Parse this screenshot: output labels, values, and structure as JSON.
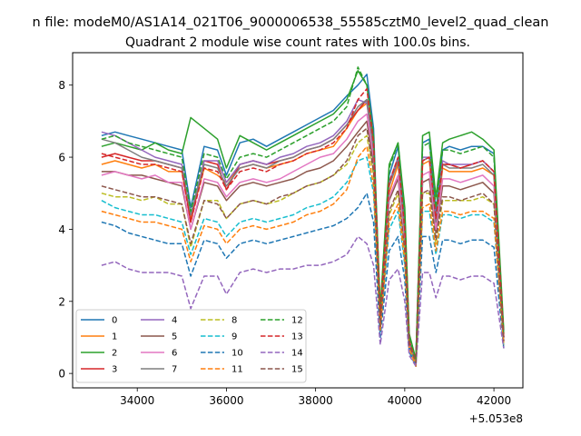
{
  "chart_data": {
    "type": "line",
    "suptitle": "n file: modeM0/AS1A14_021T06_9000006538_55585cztM0_level2_quad_clean",
    "title": "Quadrant 2 module wise count rates with 100.0s bins.",
    "xlabel": "",
    "ylabel": "",
    "offset_text": "+5.053e8",
    "xlim": [
      32550,
      42650
    ],
    "ylim": [
      -0.4,
      8.9
    ],
    "xticks": [
      34000,
      36000,
      38000,
      40000,
      42000
    ],
    "xtick_labels": [
      "34000",
      "36000",
      "38000",
      "40000",
      "42000"
    ],
    "yticks": [
      0,
      2,
      4,
      6,
      8
    ],
    "ytick_labels": [
      "0",
      "2",
      "4",
      "6",
      "8"
    ],
    "grid": false,
    "legend_placement": "lower-left",
    "x": [
      33200,
      33500,
      33800,
      34100,
      34400,
      34700,
      35000,
      35200,
      35500,
      35800,
      36000,
      36300,
      36600,
      36900,
      37200,
      37500,
      37800,
      38100,
      38400,
      38700,
      38950,
      39150,
      39300,
      39450,
      39650,
      39850,
      40000,
      40100,
      40250,
      40400,
      40550,
      40700,
      40850,
      41000,
      41250,
      41500,
      41750,
      42000,
      42220
    ],
    "series": [
      {
        "name": "0",
        "color": "#1f77b4",
        "dashed": false,
        "values": [
          6.6,
          6.7,
          6.6,
          6.5,
          6.4,
          6.3,
          6.2,
          4.6,
          6.3,
          6.2,
          5.5,
          6.4,
          6.5,
          6.3,
          6.5,
          6.7,
          6.9,
          7.1,
          7.3,
          7.7,
          8.0,
          8.3,
          6.8,
          1.6,
          5.5,
          6.3,
          4.2,
          0.9,
          0.4,
          6.4,
          6.5,
          4.5,
          6.2,
          6.3,
          6.2,
          6.3,
          6.3,
          6.1,
          1.0
        ]
      },
      {
        "name": "1",
        "color": "#ff7f0e",
        "dashed": false,
        "values": [
          5.8,
          5.9,
          5.8,
          5.7,
          5.8,
          5.6,
          5.6,
          4.3,
          5.7,
          5.5,
          5.3,
          5.7,
          5.8,
          5.7,
          5.8,
          5.9,
          6.1,
          6.2,
          6.3,
          6.8,
          7.3,
          7.5,
          6.2,
          1.3,
          5.0,
          5.8,
          3.8,
          0.8,
          0.3,
          5.8,
          5.9,
          4.1,
          5.7,
          5.6,
          5.6,
          5.6,
          5.7,
          5.5,
          0.9
        ]
      },
      {
        "name": "2",
        "color": "#2ca02c",
        "dashed": false,
        "values": [
          6.3,
          6.4,
          6.3,
          6.2,
          6.4,
          6.2,
          6.1,
          7.1,
          6.8,
          6.5,
          5.7,
          6.6,
          6.4,
          6.2,
          6.4,
          6.6,
          6.8,
          7.0,
          7.2,
          7.6,
          8.4,
          8.0,
          6.5,
          1.8,
          5.8,
          6.4,
          4.6,
          1.1,
          0.4,
          6.6,
          6.7,
          4.9,
          6.4,
          6.5,
          6.6,
          6.7,
          6.5,
          6.2,
          1.2
        ]
      },
      {
        "name": "3",
        "color": "#d62728",
        "dashed": false,
        "values": [
          6.0,
          6.1,
          6.0,
          5.9,
          5.9,
          5.8,
          5.7,
          4.2,
          5.9,
          5.8,
          5.1,
          5.8,
          5.9,
          5.8,
          5.9,
          6.0,
          6.2,
          6.3,
          6.5,
          6.9,
          7.3,
          7.6,
          6.3,
          1.5,
          5.2,
          5.9,
          4.0,
          0.9,
          0.3,
          5.9,
          6.0,
          4.3,
          5.8,
          5.8,
          5.7,
          5.8,
          5.9,
          5.6,
          1.0
        ]
      },
      {
        "name": "4",
        "color": "#9467bd",
        "dashed": false,
        "values": [
          6.7,
          6.6,
          6.4,
          6.2,
          6.0,
          5.9,
          5.8,
          4.4,
          5.9,
          5.9,
          5.3,
          5.8,
          5.9,
          5.8,
          6.0,
          6.1,
          6.3,
          6.4,
          6.6,
          7.0,
          7.6,
          7.5,
          6.2,
          1.5,
          5.3,
          6.0,
          4.0,
          0.9,
          0.3,
          6.0,
          6.0,
          4.3,
          5.9,
          5.8,
          5.8,
          5.8,
          5.9,
          5.6,
          1.0
        ]
      },
      {
        "name": "5",
        "color": "#8c564b",
        "dashed": false,
        "values": [
          5.6,
          5.6,
          5.5,
          5.5,
          5.4,
          5.3,
          5.2,
          4.0,
          5.3,
          5.2,
          4.8,
          5.2,
          5.3,
          5.2,
          5.3,
          5.4,
          5.6,
          5.7,
          5.9,
          6.3,
          6.7,
          7.0,
          5.8,
          1.4,
          4.8,
          5.4,
          3.6,
          0.8,
          0.3,
          5.3,
          5.4,
          3.9,
          5.2,
          5.2,
          5.1,
          5.2,
          5.3,
          5.0,
          0.9
        ]
      },
      {
        "name": "6",
        "color": "#e377c2",
        "dashed": false,
        "values": [
          5.5,
          5.6,
          5.5,
          5.4,
          5.5,
          5.3,
          5.3,
          4.0,
          5.4,
          5.3,
          4.9,
          5.3,
          5.4,
          5.3,
          5.4,
          5.6,
          5.8,
          6.0,
          6.1,
          6.5,
          7.0,
          7.2,
          6.0,
          1.4,
          4.9,
          5.5,
          3.7,
          0.8,
          0.3,
          5.5,
          5.6,
          4.0,
          5.4,
          5.4,
          5.3,
          5.4,
          5.5,
          5.2,
          0.9
        ]
      },
      {
        "name": "7",
        "color": "#7f7f7f",
        "dashed": false,
        "values": [
          6.5,
          6.4,
          6.2,
          6.0,
          5.9,
          5.8,
          5.7,
          4.4,
          5.8,
          5.7,
          5.2,
          5.7,
          5.8,
          5.7,
          5.9,
          6.0,
          6.2,
          6.3,
          6.5,
          6.9,
          7.4,
          7.6,
          6.2,
          1.5,
          5.2,
          5.9,
          3.9,
          0.9,
          0.3,
          5.9,
          6.0,
          4.2,
          5.8,
          5.7,
          5.7,
          5.7,
          5.8,
          5.5,
          1.0
        ]
      },
      {
        "name": "8",
        "color": "#bcbd22",
        "dashed": true,
        "values": [
          5.0,
          4.9,
          4.9,
          4.8,
          4.9,
          4.7,
          4.7,
          3.5,
          4.8,
          4.8,
          4.3,
          4.7,
          4.8,
          4.7,
          4.8,
          5.0,
          5.2,
          5.3,
          5.5,
          5.8,
          6.4,
          6.6,
          5.5,
          1.3,
          4.4,
          5.0,
          3.3,
          0.7,
          0.3,
          5.0,
          5.0,
          3.6,
          4.8,
          4.8,
          4.8,
          4.8,
          4.9,
          4.7,
          0.8
        ]
      },
      {
        "name": "9",
        "color": "#17becf",
        "dashed": true,
        "values": [
          4.8,
          4.6,
          4.5,
          4.4,
          4.4,
          4.3,
          4.2,
          3.3,
          4.3,
          4.2,
          3.8,
          4.2,
          4.3,
          4.2,
          4.3,
          4.4,
          4.6,
          4.7,
          4.9,
          5.3,
          5.9,
          6.0,
          5.0,
          1.2,
          4.0,
          4.5,
          3.0,
          0.7,
          0.2,
          4.5,
          4.5,
          3.3,
          4.4,
          4.4,
          4.3,
          4.4,
          4.4,
          4.2,
          0.8
        ]
      },
      {
        "name": "10",
        "color": "#1f77b4",
        "dashed": true,
        "values": [
          4.2,
          4.1,
          3.9,
          3.8,
          3.7,
          3.6,
          3.6,
          2.7,
          3.7,
          3.6,
          3.2,
          3.6,
          3.7,
          3.6,
          3.7,
          3.8,
          3.9,
          4.0,
          4.1,
          4.3,
          4.6,
          5.0,
          4.2,
          1.0,
          3.4,
          3.8,
          2.6,
          0.6,
          0.2,
          3.8,
          3.8,
          2.8,
          3.7,
          3.7,
          3.6,
          3.7,
          3.7,
          3.5,
          0.7
        ]
      },
      {
        "name": "11",
        "color": "#ff7f0e",
        "dashed": true,
        "values": [
          4.5,
          4.4,
          4.3,
          4.2,
          4.2,
          4.1,
          4.0,
          3.1,
          4.1,
          4.0,
          3.6,
          4.0,
          4.1,
          4.0,
          4.1,
          4.2,
          4.4,
          4.5,
          4.7,
          5.1,
          6.0,
          6.3,
          5.2,
          1.2,
          4.2,
          4.7,
          3.1,
          0.7,
          0.2,
          4.6,
          4.7,
          3.4,
          4.5,
          4.5,
          4.4,
          4.5,
          4.5,
          4.3,
          0.8
        ]
      },
      {
        "name": "12",
        "color": "#2ca02c",
        "dashed": true,
        "values": [
          6.5,
          6.6,
          6.4,
          6.3,
          6.2,
          6.1,
          6.0,
          4.5,
          6.1,
          6.0,
          5.4,
          6.0,
          6.1,
          6.0,
          6.2,
          6.4,
          6.6,
          6.8,
          7.0,
          7.4,
          8.5,
          8.0,
          6.6,
          1.7,
          5.7,
          6.4,
          4.4,
          1.0,
          0.4,
          6.3,
          6.4,
          4.6,
          6.2,
          6.2,
          6.1,
          6.2,
          6.3,
          6.0,
          1.1
        ]
      },
      {
        "name": "13",
        "color": "#d62728",
        "dashed": true,
        "values": [
          6.1,
          6.0,
          5.9,
          5.8,
          5.8,
          5.7,
          5.6,
          4.2,
          5.7,
          5.6,
          5.1,
          5.6,
          5.7,
          5.6,
          5.8,
          5.9,
          6.1,
          6.2,
          6.4,
          6.8,
          7.6,
          7.9,
          6.4,
          1.6,
          5.3,
          6.0,
          4.0,
          0.9,
          0.3,
          5.9,
          6.0,
          4.3,
          5.8,
          5.8,
          5.7,
          5.8,
          5.9,
          5.6,
          1.0
        ]
      },
      {
        "name": "14",
        "color": "#9467bd",
        "dashed": true,
        "values": [
          3.0,
          3.1,
          2.9,
          2.8,
          2.8,
          2.8,
          2.7,
          1.8,
          2.7,
          2.7,
          2.2,
          2.8,
          2.9,
          2.8,
          2.9,
          2.9,
          3.0,
          3.0,
          3.1,
          3.3,
          3.8,
          3.6,
          3.0,
          0.8,
          2.6,
          2.9,
          2.0,
          0.5,
          0.2,
          2.8,
          2.8,
          2.1,
          2.7,
          2.7,
          2.6,
          2.7,
          2.7,
          2.5,
          0.7
        ]
      },
      {
        "name": "15",
        "color": "#8c564b",
        "dashed": true,
        "values": [
          5.2,
          5.1,
          5.0,
          4.9,
          4.9,
          4.8,
          4.7,
          3.6,
          4.8,
          4.7,
          4.3,
          4.7,
          4.8,
          4.7,
          4.9,
          5.0,
          5.2,
          5.3,
          5.5,
          5.9,
          6.6,
          6.8,
          5.6,
          1.3,
          4.5,
          5.1,
          3.4,
          0.8,
          0.3,
          5.0,
          5.1,
          3.7,
          4.9,
          4.9,
          4.8,
          4.9,
          5.0,
          4.7,
          0.9
        ]
      }
    ]
  }
}
